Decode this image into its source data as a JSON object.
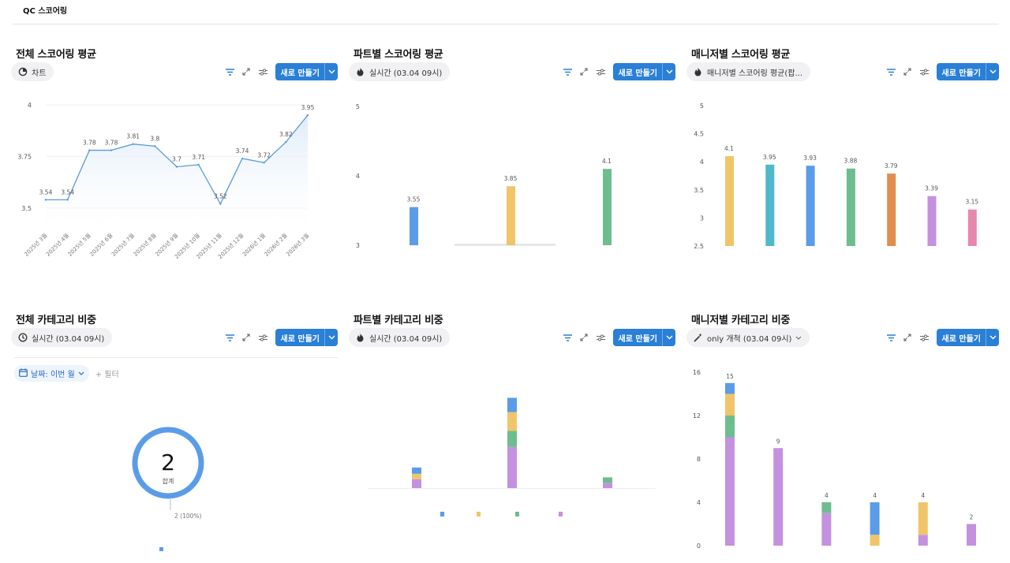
{
  "page": {
    "title": "QC 스코어링"
  },
  "toolbar": {
    "new_label": "새로 만들기"
  },
  "colors": {
    "primary": "#2a7fd6",
    "blue": "#5b9ce8",
    "yellow": "#f0c56a",
    "green": "#6dbd8e",
    "purple": "#c491df",
    "teal": "#4fb8c9",
    "orange": "#df8e50",
    "pink": "#e887ad",
    "line": "#5a9bd8"
  },
  "panels": [
    {
      "title": "전체 스코어링 평균",
      "pill": {
        "icon": "pie-clock-icon",
        "label": "차트"
      }
    },
    {
      "title": "파트별 스코어링 평균",
      "pill": {
        "icon": "fire-icon",
        "label": "실시간 (03.04 09시)"
      }
    },
    {
      "title": "매니저별 스코어링 평균",
      "pill": {
        "icon": "fire-icon",
        "label": "매니저별 스코어링 평균(팝..."
      }
    },
    {
      "title": "전체 카테고리 비중",
      "pill": {
        "icon": "clock-icon",
        "label": "실시간 (03.04 09시)"
      }
    },
    {
      "title": "파트별 카테고리 비중",
      "pill": {
        "icon": "fire-icon",
        "label": "실시간 (03.04 09시)"
      }
    },
    {
      "title": "매니저별 카테고리 비중",
      "pill": {
        "icon": "wand-icon",
        "label": "only 개척 (03.04 09시)"
      }
    }
  ],
  "filter": {
    "date_chip": "날짜: 이번 월",
    "add_filter": "+ 필터"
  },
  "chart_data": [
    {
      "type": "line",
      "categories": [
        "2025년 3월",
        "2025년 4월",
        "2025년 5월",
        "2025년 6월",
        "2025년 7월",
        "2025년 8월",
        "2025년 9월",
        "2025년 10월",
        "2025년 11월",
        "2025년 12월",
        "2026년 1월",
        "2026년 2월",
        "2026년 3월"
      ],
      "values": [
        3.54,
        3.54,
        3.78,
        3.78,
        3.81,
        3.8,
        3.7,
        3.71,
        3.52,
        3.74,
        3.72,
        3.82,
        3.95
      ],
      "yticks": [
        3.5,
        3.75,
        4
      ],
      "ylim": [
        3.4,
        4
      ],
      "area": true
    },
    {
      "type": "bar",
      "values": [
        3.55,
        3.85,
        4.1
      ],
      "colors": [
        "#5b9ce8",
        "#f0c56a",
        "#6dbd8e"
      ],
      "yticks": [
        3,
        4,
        5
      ],
      "ylim": [
        3,
        5
      ]
    },
    {
      "type": "bar",
      "values": [
        4.1,
        3.95,
        3.93,
        3.88,
        3.79,
        3.39,
        3.15
      ],
      "colors": [
        "#f0c56a",
        "#4fb8c9",
        "#5b9ce8",
        "#6dbd8e",
        "#df8e50",
        "#c491df",
        "#e887ad"
      ],
      "yticks": [
        2.5,
        3,
        3.5,
        4,
        4.5,
        5
      ],
      "ylim": [
        2.5,
        5
      ]
    },
    {
      "type": "pie",
      "total": 2,
      "total_label": "합계",
      "slice_label": "2 (100%)",
      "values": [
        2
      ],
      "colors": [
        "#5b9ce8"
      ]
    },
    {
      "type": "bar",
      "stacked": true,
      "ylim": [
        0,
        6
      ],
      "series_colors": [
        "#c491df",
        "#6dbd8e",
        "#f0c56a",
        "#5b9ce8"
      ],
      "stacks": [
        [
          0.5,
          0,
          0.3,
          0.35
        ],
        [
          2.3,
          0.9,
          1.05,
          0.8
        ],
        [
          0.3,
          0.3,
          0,
          0
        ]
      ]
    },
    {
      "type": "bar",
      "stacked": true,
      "yticks": [
        0,
        4,
        8,
        12,
        16
      ],
      "ylim": [
        0,
        16
      ],
      "series_colors": [
        "#c491df",
        "#6dbd8e",
        "#f0c56a",
        "#5b9ce8"
      ],
      "totals": [
        15,
        9,
        4,
        4,
        4,
        2
      ],
      "stacks": [
        [
          10,
          2,
          2,
          1
        ],
        [
          9,
          0,
          0,
          0
        ],
        [
          3,
          1,
          0,
          0
        ],
        [
          0,
          0,
          1,
          3
        ],
        [
          1,
          0,
          3,
          0
        ],
        [
          2,
          0,
          0,
          0
        ]
      ]
    }
  ]
}
